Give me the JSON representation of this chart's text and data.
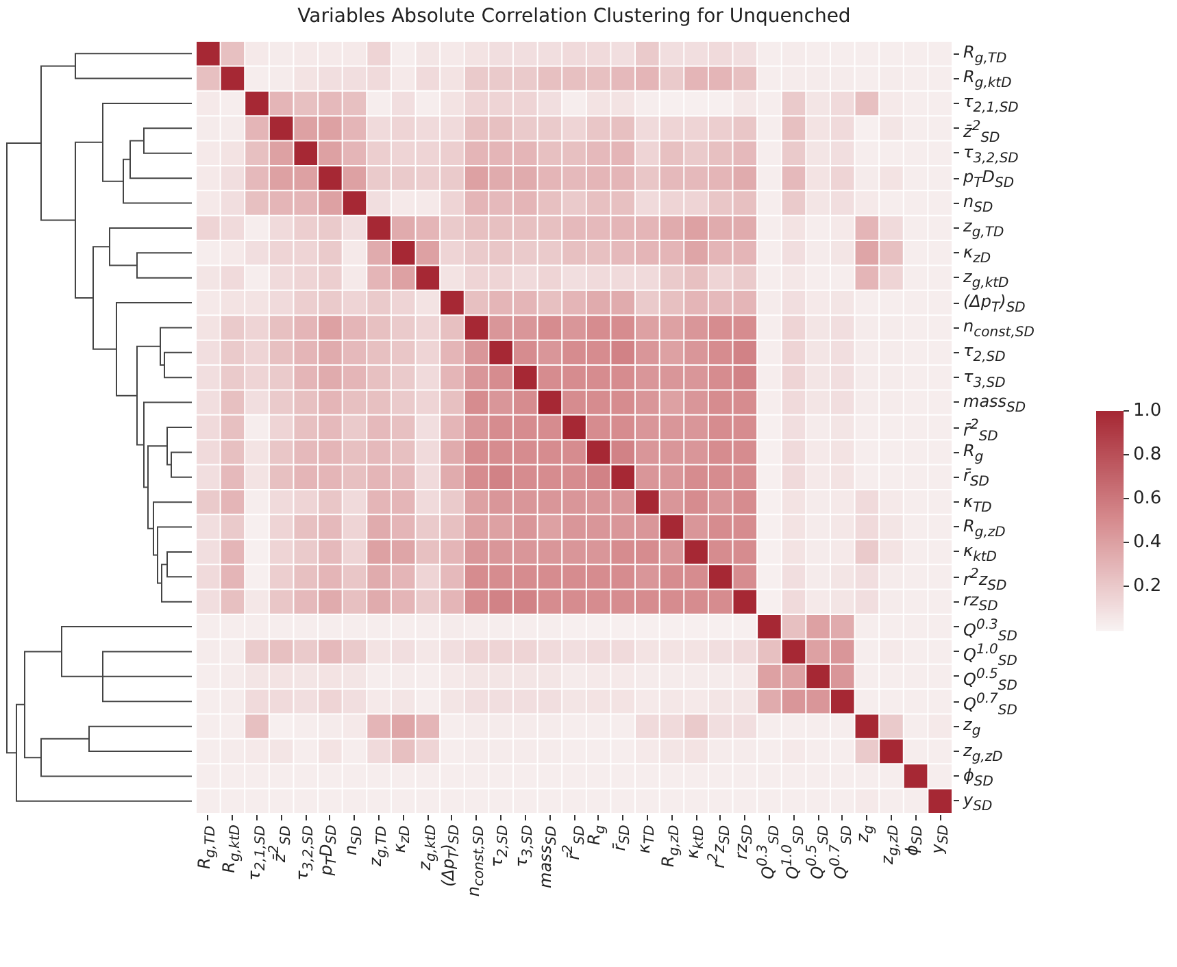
{
  "chart_data": {
    "type": "heatmap",
    "title": "Variables Absolute Correlation Clustering for Unquenched",
    "categories": [
      "R$_{g,TD}$",
      "R$_{g,ktD}$",
      "τ$_{2,1,SD}$",
      "z̄$^{2}$$_{SD}$",
      "τ$_{3,2,SD}$",
      "p$_{T}$D$_{SD}$",
      "n$_{SD}$",
      "z$_{g,TD}$",
      "κ$_{zD}$",
      "z$_{g,ktD}$",
      "(Δp$_{T}$)$_{SD}$",
      "n$_{const,SD}$",
      "τ$_{2,SD}$",
      "τ$_{3,SD}$",
      "mass$_{SD}$",
      "r̄$^{2}$$_{SD}$",
      "R$_{g}$",
      "r̄$_{SD}$",
      "κ$_{TD}$",
      "R$_{g,zD}$",
      "κ$_{ktD}$",
      "r$^{2}$z$_{SD}$",
      "rz$_{SD}$",
      "Q$^{0.3}$$_{SD}$",
      "Q$^{1.0}$$_{SD}$",
      "Q$^{0.5}$$_{SD}$",
      "Q$^{0.7}$$_{SD}$",
      "z$_{g}$",
      "z$_{g,zD}$",
      "ϕ$_{SD}$",
      "y$_{SD}$"
    ],
    "y_categories": [
      "R$_{g,TD}$",
      "R$_{g,ktD}$",
      "τ$_{2,1,SD}$",
      "z̄$^{2}$$_{SD}$",
      "τ$_{3,2,SD}$",
      "p$_{T}$D$_{SD}$",
      "n$_{SD}$",
      "z$_{g,TD}$",
      "κ$_{zD}$",
      "z$_{g,ktD}$",
      "(Δp$_{T}$)$_{SD}$",
      "n$_{const,SD}$",
      "τ$_{2,SD}$",
      "τ$_{3,SD}$",
      "mass$_{SD}$",
      "r̄$^{2}$$_{SD}$",
      "R$_{g}$",
      "r̄$_{SD}$",
      "κ$_{TD}$",
      "R$_{g,zD}$",
      "κ$_{ktD}$",
      "r$^{2}$z$_{SD}$",
      "rz$_{SD}$",
      "Q$^{0.3}$$_{SD}$",
      "Q$^{1.0}$$_{SD}$",
      "Q$^{0.5}$$_{SD}$",
      "Q$^{0.7}$$_{SD}$",
      "z$_{g}$",
      "z$_{g,zD}$",
      "ϕ$_{SD}$",
      "y$_{SD}$"
    ],
    "cells": [
      [
        1,
        0.25,
        0.05,
        0.04,
        0.05,
        0.05,
        0.05,
        0.15,
        0.03,
        0.07,
        0.05,
        0.08,
        0.1,
        0.1,
        0.1,
        0.12,
        0.12,
        0.1,
        0.2,
        0.1,
        0.1,
        0.12,
        0.1,
        0.03,
        0.04,
        0.03,
        0.03,
        0.03,
        0.03,
        0.03,
        0.03
      ],
      [
        0.25,
        1,
        0.03,
        0.04,
        0.08,
        0.1,
        0.1,
        0.12,
        0.05,
        0.12,
        0.08,
        0.2,
        0.2,
        0.2,
        0.25,
        0.25,
        0.25,
        0.28,
        0.3,
        0.2,
        0.3,
        0.3,
        0.25,
        0.03,
        0.04,
        0.04,
        0.04,
        0.03,
        0.04,
        0.03,
        0.03
      ],
      [
        0.05,
        0.03,
        1,
        0.3,
        0.25,
        0.28,
        0.25,
        0.03,
        0.1,
        0.03,
        0.08,
        0.15,
        0.15,
        0.15,
        0.1,
        0.03,
        0.08,
        0.08,
        0.03,
        0.02,
        0.02,
        0.02,
        0.06,
        0.03,
        0.2,
        0.07,
        0.12,
        0.25,
        0.05,
        0.03,
        0.03
      ],
      [
        0.04,
        0.04,
        0.3,
        1,
        0.4,
        0.4,
        0.3,
        0.12,
        0.15,
        0.12,
        0.12,
        0.25,
        0.25,
        0.2,
        0.2,
        0.15,
        0.22,
        0.25,
        0.12,
        0.15,
        0.15,
        0.18,
        0.22,
        0.03,
        0.25,
        0.08,
        0.12,
        0.02,
        0.07,
        0.03,
        0.03
      ],
      [
        0.05,
        0.08,
        0.25,
        0.4,
        1,
        0.4,
        0.3,
        0.18,
        0.15,
        0.15,
        0.18,
        0.3,
        0.3,
        0.3,
        0.25,
        0.25,
        0.28,
        0.3,
        0.15,
        0.25,
        0.2,
        0.25,
        0.28,
        0.03,
        0.2,
        0.07,
        0.1,
        0.03,
        0.03,
        0.03,
        0.03
      ],
      [
        0.05,
        0.1,
        0.28,
        0.4,
        0.4,
        1,
        0.4,
        0.2,
        0.2,
        0.18,
        0.2,
        0.4,
        0.35,
        0.35,
        0.3,
        0.28,
        0.3,
        0.3,
        0.22,
        0.28,
        0.28,
        0.3,
        0.35,
        0.03,
        0.28,
        0.08,
        0.15,
        0.04,
        0.08,
        0.03,
        0.03
      ],
      [
        0.05,
        0.1,
        0.25,
        0.3,
        0.3,
        0.4,
        1,
        0.1,
        0.05,
        0.05,
        0.15,
        0.3,
        0.28,
        0.3,
        0.25,
        0.2,
        0.25,
        0.25,
        0.12,
        0.15,
        0.15,
        0.22,
        0.25,
        0.03,
        0.2,
        0.07,
        0.1,
        0.05,
        0.03,
        0.03,
        0.03
      ],
      [
        0.15,
        0.12,
        0.03,
        0.12,
        0.18,
        0.2,
        0.1,
        1,
        0.35,
        0.3,
        0.2,
        0.25,
        0.25,
        0.25,
        0.25,
        0.28,
        0.28,
        0.3,
        0.3,
        0.35,
        0.4,
        0.35,
        0.35,
        0.03,
        0.08,
        0.03,
        0.05,
        0.3,
        0.12,
        0.03,
        0.03
      ],
      [
        0.03,
        0.05,
        0.1,
        0.15,
        0.15,
        0.2,
        0.05,
        0.35,
        1,
        0.4,
        0.15,
        0.2,
        0.22,
        0.2,
        0.2,
        0.25,
        0.25,
        0.28,
        0.3,
        0.3,
        0.38,
        0.3,
        0.3,
        0.03,
        0.1,
        0.04,
        0.07,
        0.38,
        0.25,
        0.03,
        0.03
      ],
      [
        0.07,
        0.12,
        0.03,
        0.12,
        0.15,
        0.18,
        0.05,
        0.3,
        0.4,
        1,
        0.08,
        0.15,
        0.15,
        0.12,
        0.15,
        0.1,
        0.12,
        0.12,
        0.12,
        0.2,
        0.25,
        0.15,
        0.2,
        0.03,
        0.06,
        0.03,
        0.03,
        0.3,
        0.15,
        0.03,
        0.03
      ],
      [
        0.05,
        0.08,
        0.08,
        0.12,
        0.18,
        0.2,
        0.15,
        0.2,
        0.15,
        0.08,
        1,
        0.25,
        0.3,
        0.3,
        0.25,
        0.3,
        0.35,
        0.35,
        0.2,
        0.25,
        0.3,
        0.28,
        0.3,
        0.04,
        0.1,
        0.05,
        0.07,
        0.03,
        0.03,
        0.03,
        0.03
      ],
      [
        0.08,
        0.2,
        0.15,
        0.25,
        0.3,
        0.4,
        0.3,
        0.25,
        0.2,
        0.15,
        0.25,
        1,
        0.45,
        0.45,
        0.5,
        0.45,
        0.5,
        0.5,
        0.4,
        0.4,
        0.45,
        0.5,
        0.5,
        0.03,
        0.15,
        0.07,
        0.1,
        0.04,
        0.04,
        0.03,
        0.03
      ],
      [
        0.1,
        0.2,
        0.15,
        0.25,
        0.3,
        0.35,
        0.28,
        0.25,
        0.22,
        0.15,
        0.3,
        0.45,
        1,
        0.5,
        0.45,
        0.5,
        0.5,
        0.55,
        0.45,
        0.4,
        0.45,
        0.5,
        0.55,
        0.03,
        0.15,
        0.07,
        0.1,
        0.04,
        0.04,
        0.03,
        0.03
      ],
      [
        0.1,
        0.2,
        0.15,
        0.2,
        0.3,
        0.35,
        0.3,
        0.25,
        0.2,
        0.12,
        0.3,
        0.45,
        0.5,
        1,
        0.5,
        0.5,
        0.5,
        0.5,
        0.45,
        0.45,
        0.45,
        0.5,
        0.55,
        0.03,
        0.15,
        0.07,
        0.1,
        0.04,
        0.04,
        0.03,
        0.03
      ],
      [
        0.1,
        0.25,
        0.1,
        0.2,
        0.25,
        0.3,
        0.25,
        0.25,
        0.2,
        0.15,
        0.25,
        0.5,
        0.45,
        0.5,
        1,
        0.5,
        0.5,
        0.5,
        0.45,
        0.4,
        0.45,
        0.5,
        0.5,
        0.03,
        0.12,
        0.07,
        0.1,
        0.04,
        0.04,
        0.03,
        0.03
      ],
      [
        0.12,
        0.25,
        0.03,
        0.15,
        0.25,
        0.28,
        0.2,
        0.28,
        0.25,
        0.1,
        0.3,
        0.45,
        0.5,
        0.5,
        0.5,
        1,
        0.5,
        0.5,
        0.45,
        0.45,
        0.45,
        0.5,
        0.5,
        0.02,
        0.1,
        0.04,
        0.07,
        0.03,
        0.03,
        0.03,
        0.03
      ],
      [
        0.12,
        0.25,
        0.08,
        0.22,
        0.28,
        0.3,
        0.25,
        0.28,
        0.25,
        0.12,
        0.35,
        0.5,
        0.5,
        0.5,
        0.5,
        0.5,
        1,
        0.55,
        0.45,
        0.45,
        0.45,
        0.5,
        0.5,
        0.02,
        0.12,
        0.05,
        0.08,
        0.03,
        0.03,
        0.03,
        0.03
      ],
      [
        0.1,
        0.28,
        0.08,
        0.25,
        0.3,
        0.3,
        0.25,
        0.3,
        0.28,
        0.12,
        0.35,
        0.5,
        0.55,
        0.5,
        0.5,
        0.5,
        0.55,
        1,
        0.45,
        0.45,
        0.5,
        0.5,
        0.5,
        0.02,
        0.12,
        0.05,
        0.08,
        0.03,
        0.03,
        0.03,
        0.03
      ],
      [
        0.2,
        0.3,
        0.03,
        0.12,
        0.15,
        0.22,
        0.12,
        0.3,
        0.3,
        0.12,
        0.2,
        0.4,
        0.45,
        0.45,
        0.45,
        0.45,
        0.45,
        0.45,
        1,
        0.45,
        0.5,
        0.45,
        0.5,
        0.02,
        0.08,
        0.04,
        0.05,
        0.12,
        0.05,
        0.03,
        0.03
      ],
      [
        0.1,
        0.2,
        0.02,
        0.15,
        0.25,
        0.28,
        0.15,
        0.35,
        0.3,
        0.2,
        0.25,
        0.4,
        0.4,
        0.45,
        0.4,
        0.45,
        0.45,
        0.45,
        0.45,
        1,
        0.45,
        0.5,
        0.5,
        0.02,
        0.08,
        0.04,
        0.06,
        0.12,
        0.07,
        0.03,
        0.03
      ],
      [
        0.1,
        0.3,
        0.02,
        0.15,
        0.2,
        0.28,
        0.15,
        0.4,
        0.38,
        0.25,
        0.3,
        0.45,
        0.45,
        0.45,
        0.45,
        0.45,
        0.45,
        0.5,
        0.5,
        0.45,
        1,
        0.5,
        0.5,
        0.02,
        0.08,
        0.04,
        0.05,
        0.2,
        0.08,
        0.03,
        0.03
      ],
      [
        0.12,
        0.3,
        0.02,
        0.18,
        0.25,
        0.3,
        0.22,
        0.35,
        0.3,
        0.15,
        0.28,
        0.5,
        0.5,
        0.5,
        0.5,
        0.5,
        0.5,
        0.5,
        0.45,
        0.5,
        0.5,
        1,
        0.5,
        0.02,
        0.1,
        0.04,
        0.07,
        0.1,
        0.04,
        0.03,
        0.03
      ],
      [
        0.1,
        0.25,
        0.06,
        0.22,
        0.28,
        0.35,
        0.25,
        0.35,
        0.3,
        0.2,
        0.3,
        0.5,
        0.55,
        0.55,
        0.5,
        0.5,
        0.5,
        0.5,
        0.5,
        0.5,
        0.5,
        0.5,
        1,
        0.02,
        0.12,
        0.05,
        0.07,
        0.1,
        0.04,
        0.03,
        0.03
      ],
      [
        0.03,
        0.03,
        0.03,
        0.03,
        0.03,
        0.03,
        0.03,
        0.03,
        0.03,
        0.03,
        0.04,
        0.03,
        0.03,
        0.03,
        0.03,
        0.02,
        0.02,
        0.02,
        0.02,
        0.02,
        0.02,
        0.02,
        0.02,
        1,
        0.25,
        0.4,
        0.35,
        0.03,
        0.03,
        0.03,
        0.03
      ],
      [
        0.04,
        0.04,
        0.2,
        0.25,
        0.2,
        0.28,
        0.2,
        0.08,
        0.1,
        0.06,
        0.1,
        0.15,
        0.15,
        0.15,
        0.12,
        0.1,
        0.12,
        0.12,
        0.08,
        0.08,
        0.08,
        0.1,
        0.12,
        0.25,
        1,
        0.4,
        0.45,
        0.03,
        0.05,
        0.03,
        0.03
      ],
      [
        0.03,
        0.04,
        0.07,
        0.08,
        0.07,
        0.08,
        0.07,
        0.03,
        0.04,
        0.03,
        0.05,
        0.07,
        0.07,
        0.07,
        0.07,
        0.04,
        0.05,
        0.05,
        0.04,
        0.04,
        0.04,
        0.04,
        0.05,
        0.4,
        0.4,
        1,
        0.45,
        0.03,
        0.03,
        0.03,
        0.03
      ],
      [
        0.03,
        0.04,
        0.12,
        0.12,
        0.1,
        0.15,
        0.1,
        0.05,
        0.07,
        0.03,
        0.07,
        0.1,
        0.1,
        0.1,
        0.1,
        0.07,
        0.08,
        0.08,
        0.05,
        0.06,
        0.05,
        0.07,
        0.07,
        0.35,
        0.45,
        0.45,
        1,
        0.03,
        0.03,
        0.03,
        0.03
      ],
      [
        0.03,
        0.03,
        0.25,
        0.02,
        0.03,
        0.04,
        0.05,
        0.3,
        0.38,
        0.3,
        0.03,
        0.04,
        0.04,
        0.04,
        0.04,
        0.03,
        0.03,
        0.03,
        0.12,
        0.12,
        0.2,
        0.1,
        0.1,
        0.03,
        0.03,
        0.03,
        0.03,
        1,
        0.2,
        0.03,
        0.05
      ],
      [
        0.03,
        0.04,
        0.05,
        0.07,
        0.03,
        0.08,
        0.03,
        0.12,
        0.25,
        0.15,
        0.03,
        0.04,
        0.04,
        0.04,
        0.04,
        0.03,
        0.03,
        0.03,
        0.05,
        0.07,
        0.08,
        0.04,
        0.04,
        0.03,
        0.05,
        0.03,
        0.03,
        0.2,
        1,
        0.03,
        0.03
      ],
      [
        0.03,
        0.03,
        0.03,
        0.03,
        0.03,
        0.03,
        0.03,
        0.03,
        0.03,
        0.03,
        0.03,
        0.03,
        0.03,
        0.03,
        0.03,
        0.03,
        0.03,
        0.03,
        0.03,
        0.03,
        0.03,
        0.03,
        0.03,
        0.03,
        0.03,
        0.03,
        0.03,
        0.03,
        0.03,
        1,
        0.03
      ],
      [
        0.03,
        0.03,
        0.03,
        0.03,
        0.03,
        0.03,
        0.03,
        0.03,
        0.03,
        0.03,
        0.03,
        0.03,
        0.03,
        0.03,
        0.03,
        0.03,
        0.03,
        0.03,
        0.03,
        0.03,
        0.03,
        0.03,
        0.03,
        0.03,
        0.03,
        0.03,
        0.03,
        0.05,
        0.03,
        0.03,
        1
      ]
    ],
    "clim": [
      0,
      1
    ],
    "cticks": [
      0.2,
      0.4,
      0.6,
      0.8,
      {
        "value": 1,
        "label": "1.0"
      }
    ]
  }
}
